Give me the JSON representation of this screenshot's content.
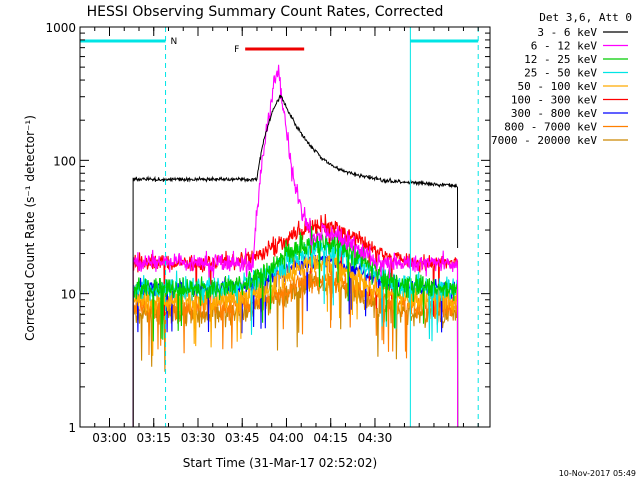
{
  "chart_data": {
    "type": "line",
    "title": "HESSI Observing Summary Count Rates, Corrected",
    "xlabel": "Start Time (31-Mar-17 02:52:02)",
    "ylabel": "Corrected Count Rate (s⁻¹ detector⁻¹)",
    "y_scale": "log",
    "ylim": [
      1,
      1000
    ],
    "xlim_minutes": [
      -2,
      137
    ],
    "x_ticks": [
      "03:00",
      "03:15",
      "03:30",
      "03:45",
      "04:00",
      "04:15",
      "04:30"
    ],
    "y_ticks": [
      "1",
      "10",
      "100",
      "1000"
    ],
    "legend_header": "Det 3,6, Att 0",
    "legend_placement": "right",
    "series": [
      {
        "name": "3 - 6 keV",
        "color": "#000000",
        "base": 72,
        "flare_peak": 310,
        "noise": 0.06
      },
      {
        "name": "6 - 12 keV",
        "color": "#ff00ff",
        "base": 17,
        "flare_peak": 480,
        "noise": 0.12
      },
      {
        "name": "12 - 25 keV",
        "color": "#00cc00",
        "base": 11,
        "flare_peak": 25,
        "noise": 0.15
      },
      {
        "name": "25 - 50 keV",
        "color": "#00e5e5",
        "base": 11,
        "flare_peak": 22,
        "noise": 0.15
      },
      {
        "name": "50 - 100 keV",
        "color": "#ffaa00",
        "base": 9,
        "flare_peak": 17,
        "noise": 0.16
      },
      {
        "name": "100 - 300 keV",
        "color": "#ff0000",
        "base": 17,
        "flare_peak": 32,
        "noise": 0.1
      },
      {
        "name": "300 - 800 keV",
        "color": "#0000ff",
        "base": 11,
        "flare_peak": 18,
        "noise": 0.1
      },
      {
        "name": "800 - 7000 keV",
        "color": "#ff7f00",
        "base": 8,
        "flare_peak": 13,
        "noise": 0.15
      },
      {
        "name": "7000 - 20000 keV",
        "color": "#cc8800",
        "base": 7,
        "flare_peak": 12,
        "noise": 0.15
      }
    ],
    "data_window_minutes": [
      16,
      126
    ],
    "flare_center_minutes": 66,
    "annotations": {
      "night_marker": "N",
      "flare_marker": "F",
      "night_intervals_minutes": [
        [
          -2,
          27
        ],
        [
          110,
          133
        ]
      ],
      "flare_interval_minutes": [
        54,
        74
      ],
      "saa_boundaries_minutes": [
        -2,
        110
      ],
      "dashed_boundaries_minutes": [
        27,
        133
      ]
    },
    "timestamp": "10-Nov-2017 05:49"
  }
}
